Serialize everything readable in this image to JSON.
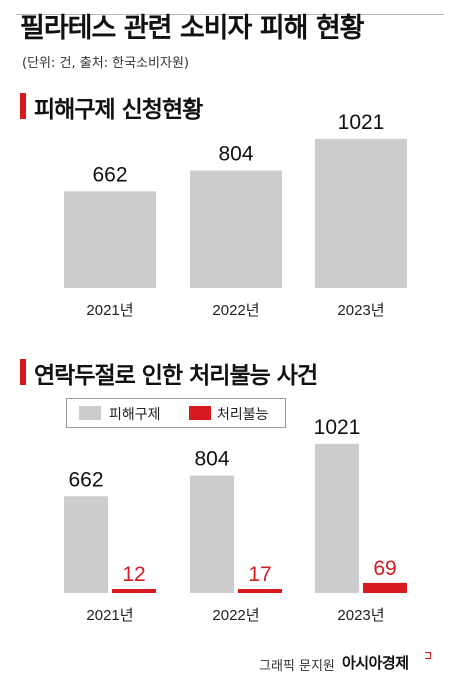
{
  "header": {
    "title": "필라테스 관련 소비자 피해 현황",
    "unit_note": "(단위: 건, 출처: 한국소비자원)"
  },
  "credit": {
    "label": "그래픽 문지원",
    "brand": "아시아경제"
  },
  "colors": {
    "gray_bar": "#cccccc",
    "red_bar": "#d71920",
    "accent": "#d71920"
  },
  "chart_data": [
    {
      "type": "bar",
      "title": "피해구제 신청현황",
      "categories": [
        "2021년",
        "2022년",
        "2023년"
      ],
      "values": [
        662,
        804,
        1021
      ],
      "ylim": [
        0,
        1150
      ],
      "grid": false,
      "xlabel": "",
      "ylabel": ""
    },
    {
      "type": "bar",
      "title": "연락두절로 인한 처리불능 사건",
      "categories": [
        "2021년",
        "2022년",
        "2023년"
      ],
      "series": [
        {
          "name": "피해구제",
          "values": [
            662,
            804,
            1021
          ]
        },
        {
          "name": "처리불능",
          "values": [
            12,
            17,
            69
          ]
        }
      ],
      "ylim": [
        0,
        1150
      ],
      "legend": "top-left",
      "grid": false,
      "xlabel": "",
      "ylabel": ""
    }
  ]
}
